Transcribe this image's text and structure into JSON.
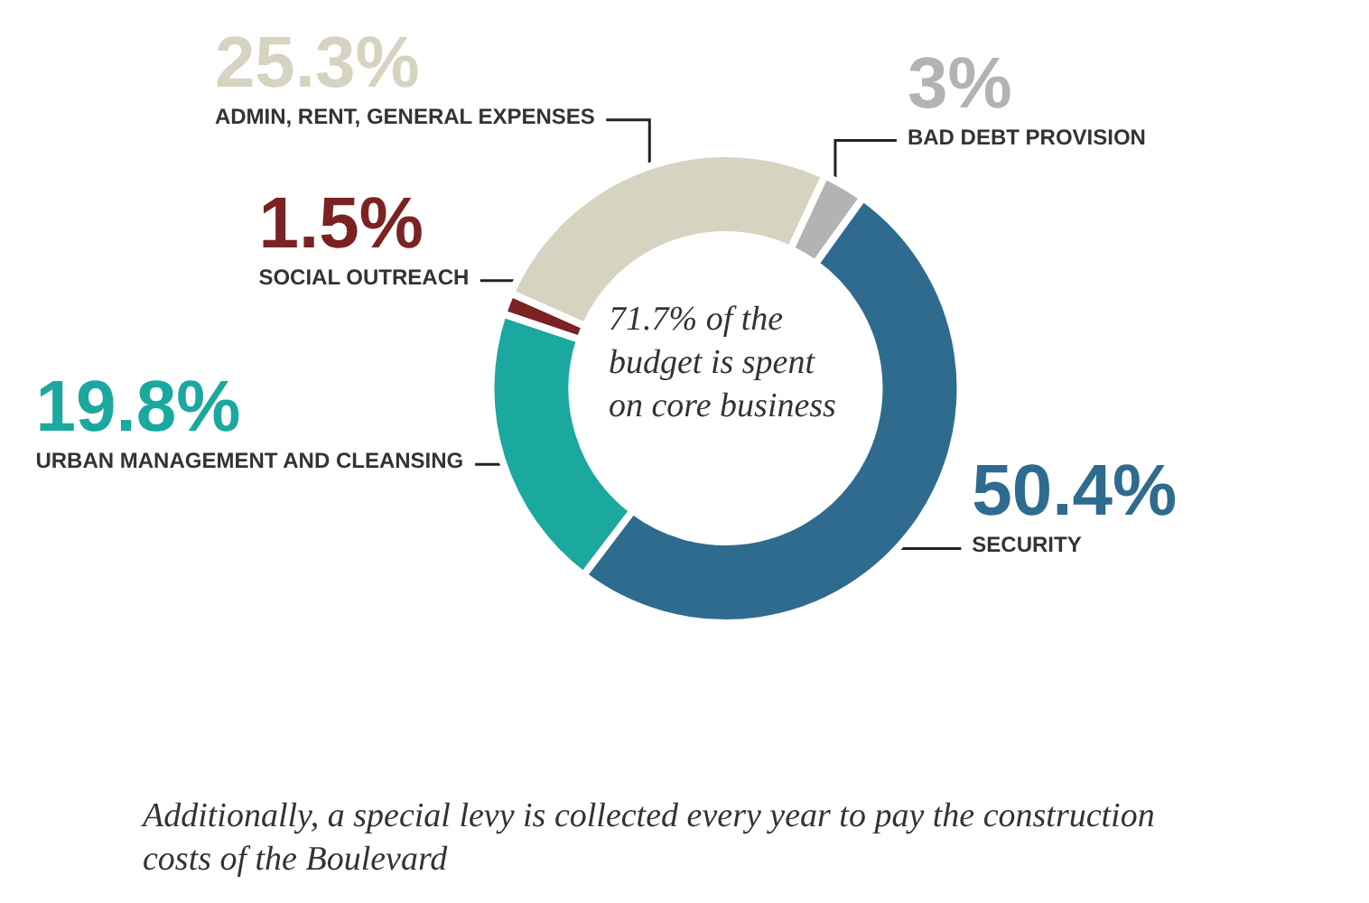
{
  "chart_data": {
    "type": "donut",
    "categories": [
      "BAD DEBT PROVISION",
      "SECURITY",
      "URBAN MANAGEMENT AND CLEANSING",
      "SOCIAL OUTREACH",
      "ADMIN, RENT, GENERAL EXPENSES"
    ],
    "values": [
      3,
      50.4,
      19.8,
      1.5,
      25.3
    ],
    "value_labels": [
      "3%",
      "50.4%",
      "19.8%",
      "1.5%",
      "25.3%"
    ],
    "colors": [
      "#b3b3b3",
      "#2f6b8f",
      "#1ba89e",
      "#7b2222",
      "#d7d3c1"
    ],
    "annotations": [
      "71.7% of the budget is spent on core business",
      "Additionally, a special levy is collected every year to pay the construction costs of the Boulevard"
    ],
    "legend": false
  }
}
